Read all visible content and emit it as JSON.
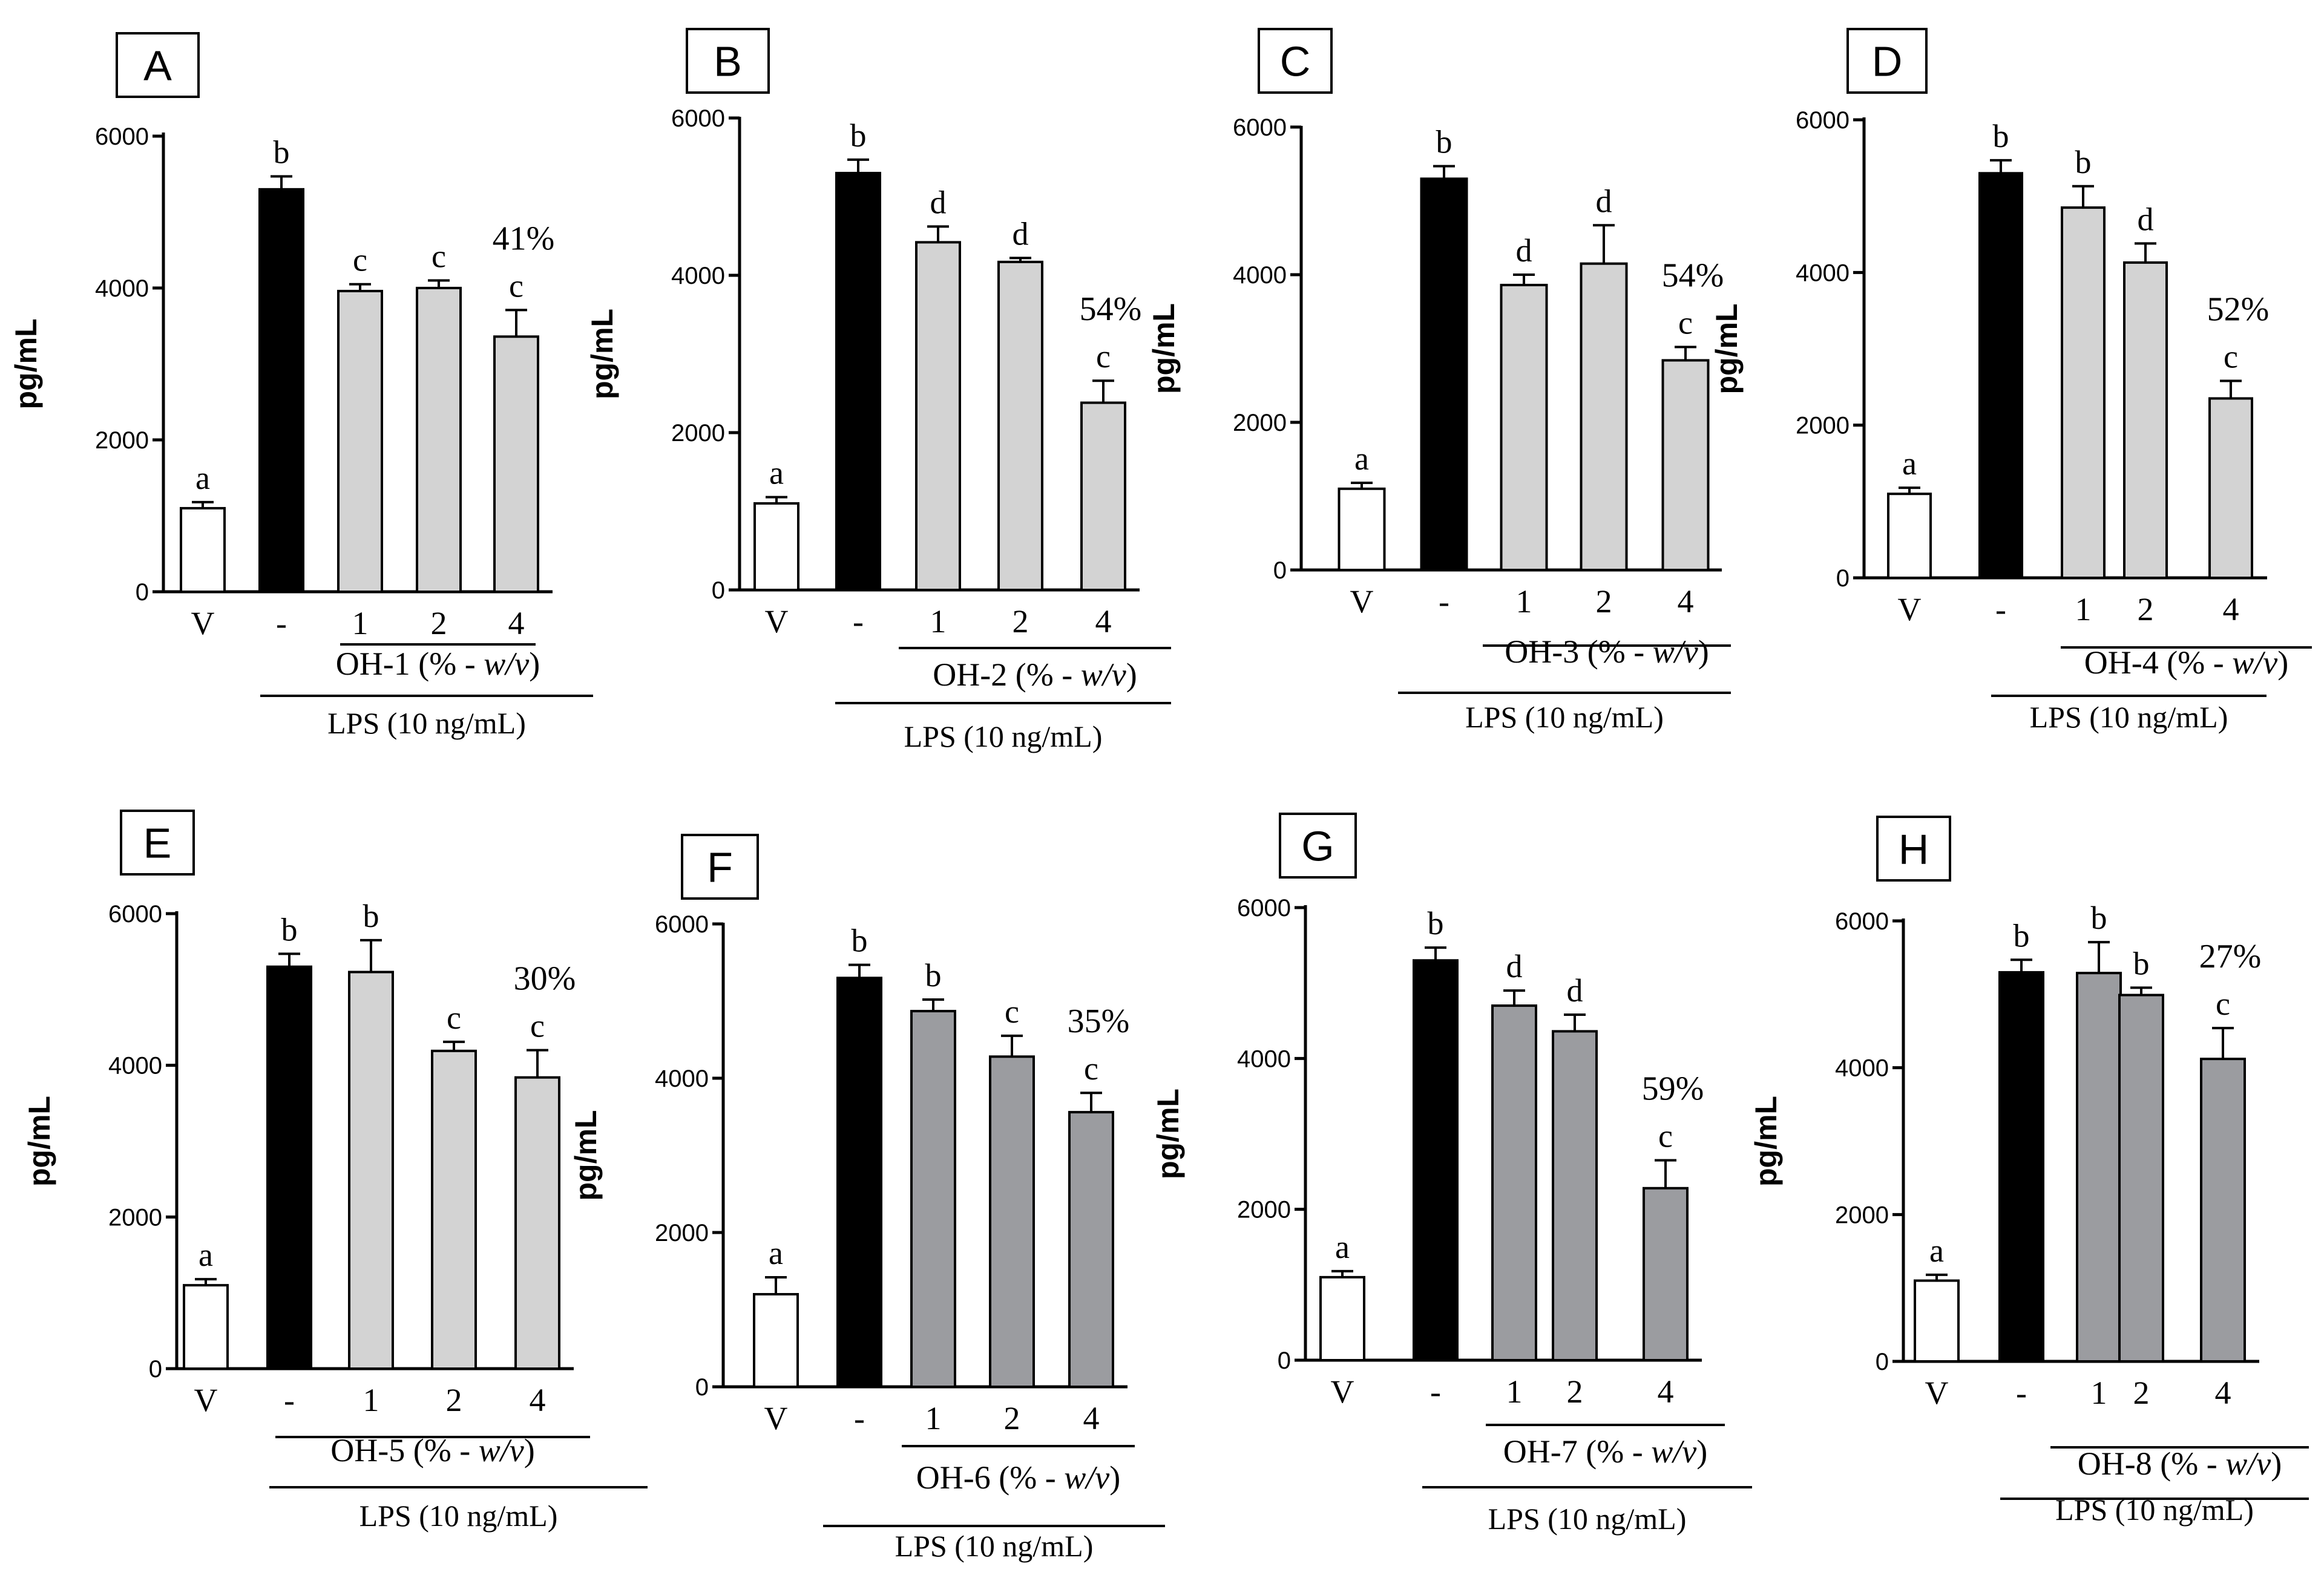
{
  "figure": {
    "ylabel": "pg/mL",
    "lps_label": "LPS (10 ng/mL)",
    "vehicle_label": "V",
    "lps_only_label": "-"
  },
  "colors": {
    "vehicle": "#ffffff",
    "lps": "#000000",
    "light_gray": "#d3d3d3",
    "dark_gray": "#9b9ca0",
    "stroke": "#000000"
  },
  "chart_data": [
    {
      "type": "bar",
      "panel": "A",
      "ylabel": "pg/mL",
      "ylim": [
        0,
        6000
      ],
      "yticks": [
        0,
        2000,
        4000,
        6000
      ],
      "categories": [
        "V",
        "-",
        "1",
        "2",
        "4"
      ],
      "values": [
        1100,
        5300,
        3960,
        4000,
        3360
      ],
      "errors": [
        80,
        170,
        90,
        100,
        350
      ],
      "letters": [
        "a",
        "b",
        "c",
        "c",
        "c"
      ],
      "percent": "41%",
      "treatment": "OH-1",
      "fill": "light_gray",
      "group_label": [
        "OH-1 (% - ",
        "w/v",
        ")"
      ],
      "lps_label": "LPS (10 ng/mL)"
    },
    {
      "type": "bar",
      "panel": "B",
      "ylabel": "pg/mL",
      "ylim": [
        0,
        6000
      ],
      "yticks": [
        0,
        2000,
        4000,
        6000
      ],
      "categories": [
        "V",
        "-",
        "1",
        "2",
        "4"
      ],
      "values": [
        1100,
        5300,
        4420,
        4170,
        2380
      ],
      "errors": [
        80,
        170,
        200,
        50,
        280
      ],
      "letters": [
        "a",
        "b",
        "d",
        "d",
        "c"
      ],
      "percent": "54%",
      "treatment": "OH-2",
      "fill": "light_gray",
      "group_label": [
        "OH-2 (% - ",
        "w/v",
        ")"
      ],
      "lps_label": "LPS (10 ng/mL)"
    },
    {
      "type": "bar",
      "panel": "C",
      "ylabel": "pg/mL",
      "ylim": [
        0,
        6000
      ],
      "yticks": [
        0,
        2000,
        4000,
        6000
      ],
      "categories": [
        "V",
        "-",
        "1",
        "2",
        "4"
      ],
      "values": [
        1100,
        5300,
        3860,
        4150,
        2840
      ],
      "errors": [
        80,
        170,
        140,
        520,
        180
      ],
      "letters": [
        "a",
        "b",
        "d",
        "d",
        "c"
      ],
      "percent": "54%",
      "treatment": "OH-3",
      "fill": "light_gray",
      "group_label": [
        "OH-3 (% - ",
        "w/v",
        ")"
      ],
      "lps_label": "LPS (10 ng/mL)"
    },
    {
      "type": "bar",
      "panel": "D",
      "ylabel": "pg/mL",
      "ylim": [
        0,
        6000
      ],
      "yticks": [
        0,
        2000,
        4000,
        6000
      ],
      "categories": [
        "V",
        "-",
        "1",
        "2",
        "4"
      ],
      "values": [
        1100,
        5300,
        4850,
        4130,
        2350
      ],
      "errors": [
        80,
        170,
        280,
        250,
        230
      ],
      "letters": [
        "a",
        "b",
        "b",
        "d",
        "c"
      ],
      "percent": "52%",
      "treatment": "OH-4",
      "fill": "light_gray",
      "group_label": [
        "OH-4 (% - ",
        "w/v",
        ")"
      ],
      "lps_label": "LPS (10 ng/mL)"
    },
    {
      "type": "bar",
      "panel": "E",
      "ylabel": "pg/mL",
      "ylim": [
        0,
        6000
      ],
      "yticks": [
        0,
        2000,
        4000,
        6000
      ],
      "categories": [
        "V",
        "-",
        "1",
        "2",
        "4"
      ],
      "values": [
        1100,
        5300,
        5230,
        4190,
        3840
      ],
      "errors": [
        80,
        170,
        420,
        120,
        360
      ],
      "letters": [
        "a",
        "b",
        "b",
        "c",
        "c"
      ],
      "percent": "30%",
      "treatment": "OH-5",
      "fill": "light_gray",
      "group_label": [
        "OH-5 (% - ",
        "w/v",
        ")"
      ],
      "lps_label": "LPS (10 ng/mL)"
    },
    {
      "type": "bar",
      "panel": "F",
      "ylabel": "pg/mL",
      "ylim": [
        0,
        6000
      ],
      "yticks": [
        0,
        2000,
        4000,
        6000
      ],
      "categories": [
        "V",
        "-",
        "1",
        "2",
        "4"
      ],
      "values": [
        1200,
        5300,
        4870,
        4280,
        3560
      ],
      "errors": [
        220,
        170,
        150,
        270,
        250
      ],
      "letters": [
        "a",
        "b",
        "b",
        "c",
        "c"
      ],
      "percent": "35%",
      "treatment": "OH-6",
      "fill": "dark_gray",
      "group_label": [
        "OH-6 (% - ",
        "w/v",
        ")"
      ],
      "lps_label": "LPS (10 ng/mL)"
    },
    {
      "type": "bar",
      "panel": "G",
      "ylabel": "pg/mL",
      "ylim": [
        0,
        6000
      ],
      "yticks": [
        0,
        2000,
        4000,
        6000
      ],
      "categories": [
        "V",
        "-",
        "1",
        "2",
        "4"
      ],
      "values": [
        1100,
        5300,
        4700,
        4360,
        2280
      ],
      "errors": [
        80,
        170,
        200,
        220,
        370
      ],
      "letters": [
        "a",
        "b",
        "d",
        "d",
        "c"
      ],
      "percent": "59%",
      "treatment": "OH-7",
      "fill": "dark_gray",
      "group_label": [
        "OH-7 (% - ",
        "w/v",
        ")"
      ],
      "lps_label": "LPS (10 ng/mL)"
    },
    {
      "type": "bar",
      "panel": "H",
      "ylabel": "pg/mL",
      "ylim": [
        0,
        6000
      ],
      "yticks": [
        0,
        2000,
        4000,
        6000
      ],
      "categories": [
        "V",
        "-",
        "1",
        "2",
        "4"
      ],
      "values": [
        1100,
        5300,
        5290,
        4990,
        4120
      ],
      "errors": [
        80,
        170,
        420,
        100,
        420
      ],
      "letters": [
        "a",
        "b",
        "b",
        "b",
        "c"
      ],
      "percent": "27%",
      "treatment": "OH-8",
      "fill": "dark_gray",
      "group_label": [
        "OH-8 (% - ",
        "w/v",
        ")"
      ],
      "lps_label": "LPS (10 ng/mL)"
    }
  ]
}
